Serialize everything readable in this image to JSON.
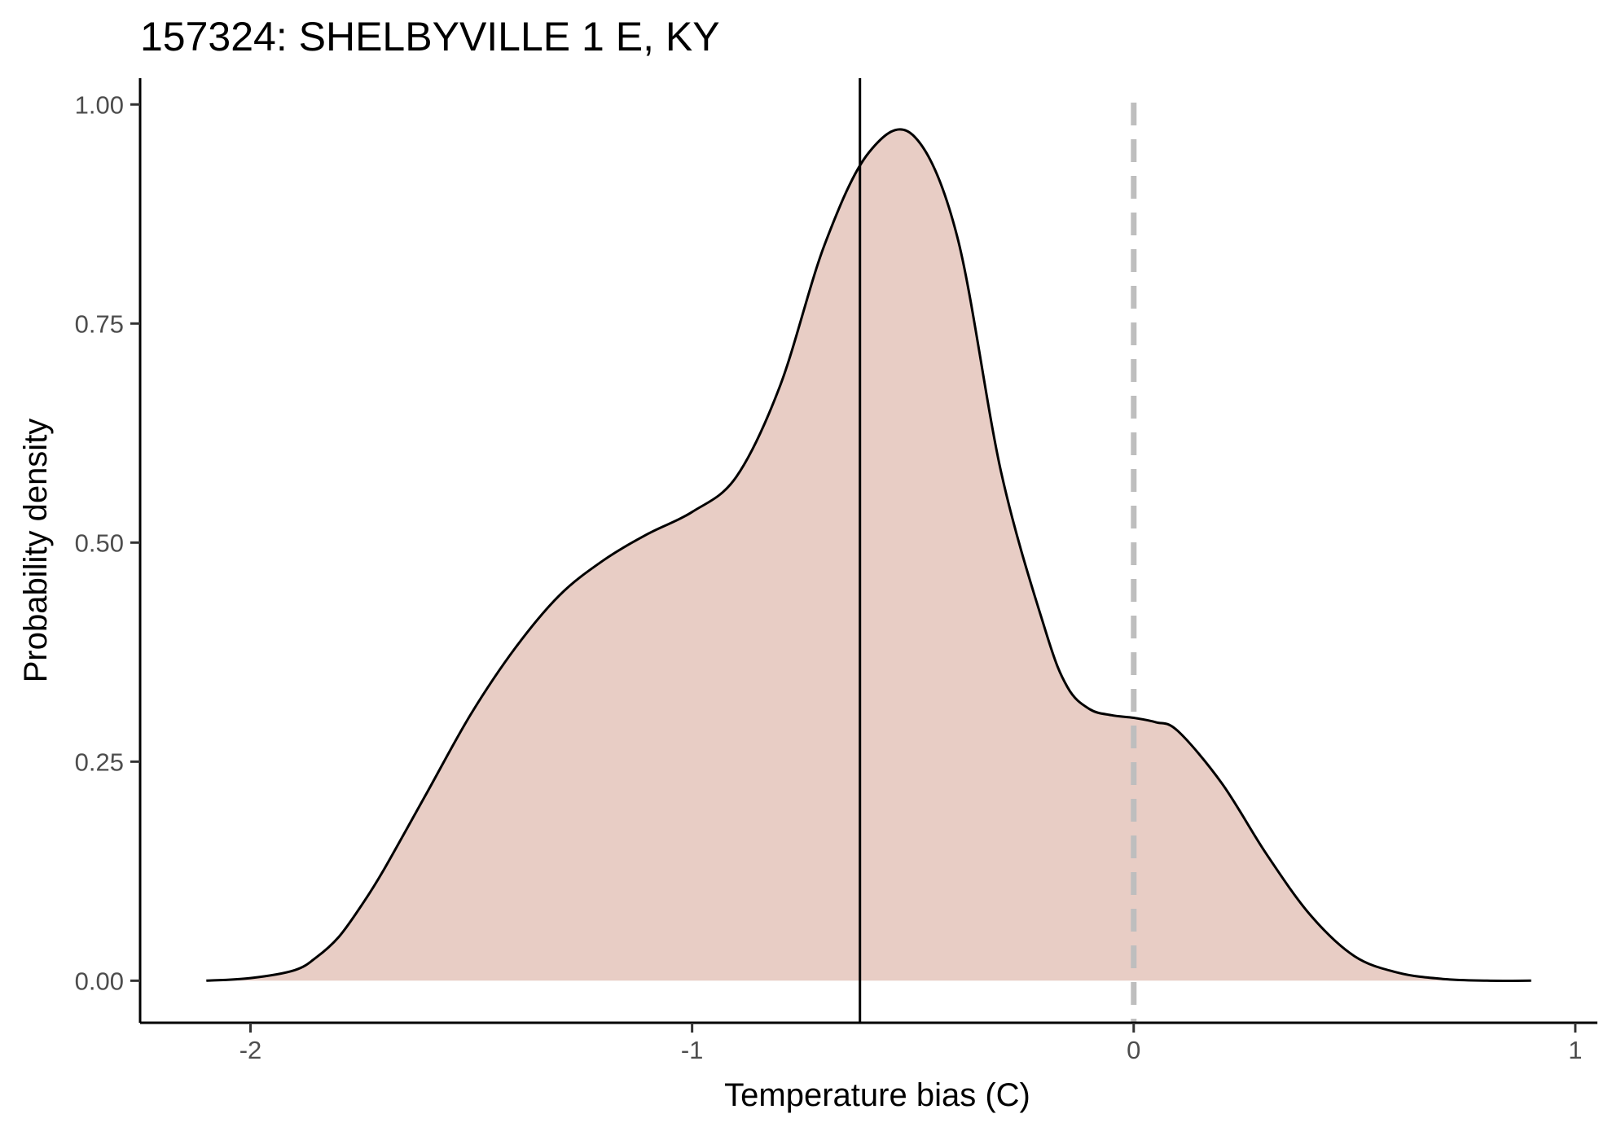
{
  "chart_data": {
    "type": "area",
    "title": "157324: SHELBYVILLE 1 E, KY",
    "xlabel": "Temperature bias (C)",
    "ylabel": "Probability density",
    "xlim": [
      -2.25,
      1.05
    ],
    "ylim": [
      -0.048,
      1.03
    ],
    "x_ticks": [
      -2,
      -1,
      0,
      1
    ],
    "x_tick_labels": [
      "-2",
      "-1",
      "0",
      "1"
    ],
    "y_ticks": [
      0,
      0.25,
      0.5,
      0.75,
      1.0
    ],
    "y_tick_labels": [
      "0.00",
      "0.25",
      "0.50",
      "0.75",
      "1.00"
    ],
    "grid": false,
    "legend": "none",
    "fill_color": "#e8cdc5",
    "line_color": "#000000",
    "reference_lines": [
      {
        "x": -0.62,
        "style": "solid",
        "color": "#000000"
      },
      {
        "x": 0.0,
        "style": "dashed",
        "color": "#bebebe"
      }
    ],
    "series": [
      {
        "x": [
          -2.1,
          -2.0,
          -1.9,
          -1.85,
          -1.8,
          -1.75,
          -1.7,
          -1.6,
          -1.5,
          -1.4,
          -1.3,
          -1.2,
          -1.1,
          -1.0,
          -0.9,
          -0.8,
          -0.7,
          -0.6,
          -0.5,
          -0.4,
          -0.3,
          -0.2,
          -0.15,
          -0.1,
          -0.05,
          0.0,
          0.05,
          0.1,
          0.2,
          0.3,
          0.4,
          0.5,
          0.6,
          0.7,
          0.8,
          0.9
        ],
        "y": [
          0.0,
          0.003,
          0.012,
          0.027,
          0.05,
          0.085,
          0.125,
          0.215,
          0.305,
          0.38,
          0.44,
          0.48,
          0.51,
          0.535,
          0.575,
          0.68,
          0.84,
          0.945,
          0.965,
          0.85,
          0.58,
          0.4,
          0.335,
          0.31,
          0.303,
          0.3,
          0.295,
          0.285,
          0.225,
          0.145,
          0.075,
          0.028,
          0.009,
          0.002,
          0.0,
          0.0
        ]
      }
    ]
  }
}
